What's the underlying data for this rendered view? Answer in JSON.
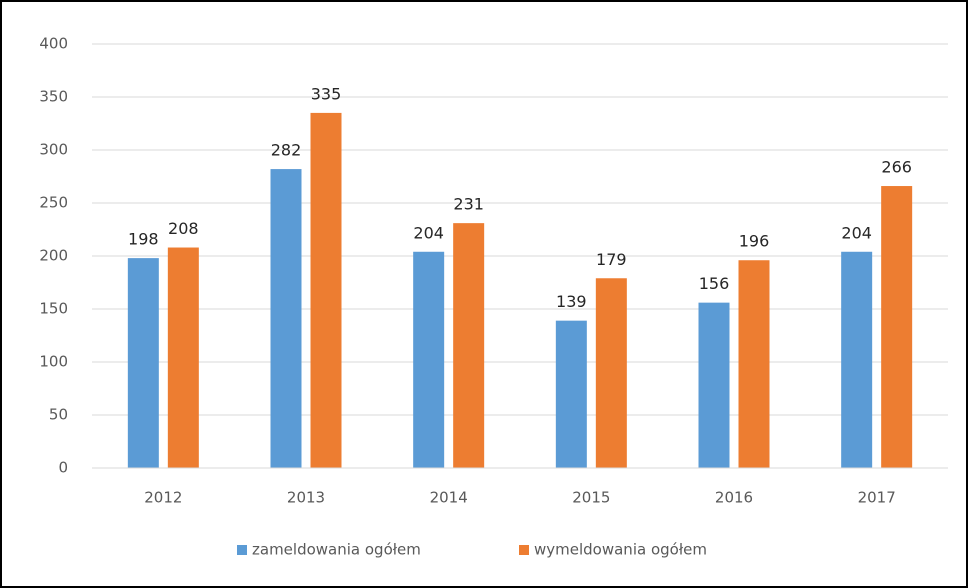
{
  "chart_data": {
    "type": "bar",
    "categories": [
      "2012",
      "2013",
      "2014",
      "2015",
      "2016",
      "2017"
    ],
    "series": [
      {
        "name": "zameldowania ogółem",
        "color": "#5b9bd5",
        "values": [
          198,
          282,
          204,
          139,
          156,
          204
        ]
      },
      {
        "name": "wymeldowania ogółem",
        "color": "#ed7d31",
        "values": [
          208,
          335,
          231,
          179,
          196,
          266
        ]
      }
    ],
    "ylim": [
      0,
      400
    ],
    "yticks": [
      0,
      50,
      100,
      150,
      200,
      250,
      300,
      350,
      400
    ],
    "grid": true,
    "legend": "bottom"
  }
}
